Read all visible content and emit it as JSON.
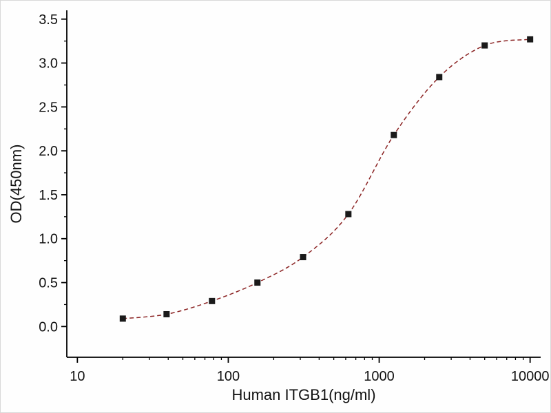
{
  "chart_data": {
    "type": "scatter",
    "title": "",
    "xlabel": "Human ITGB1(ng/ml)",
    "ylabel": "OD(450nm)",
    "grid": false,
    "legend": "none",
    "axes": {
      "x_scale": "log10",
      "x_log10_range": [
        0.93,
        4.07
      ],
      "y_range": [
        -0.35,
        3.6
      ],
      "x_ticks": [
        10,
        100,
        1000,
        10000
      ],
      "x_tick_labels": [
        "10",
        "100",
        "1000",
        "10000"
      ],
      "x_minor_ticks": [
        20,
        30,
        40,
        50,
        60,
        70,
        80,
        90,
        200,
        300,
        400,
        500,
        600,
        700,
        800,
        900,
        2000,
        3000,
        4000,
        5000,
        6000,
        7000,
        8000,
        9000
      ],
      "y_ticks": [
        0.0,
        0.5,
        1.0,
        1.5,
        2.0,
        2.5,
        3.0,
        3.5
      ],
      "y_tick_labels": [
        "0.0",
        "0.5",
        "1.0",
        "1.5",
        "2.0",
        "2.5",
        "3.0",
        "3.5"
      ],
      "y_minor_ticks": [
        0.25,
        0.75,
        1.25,
        1.75,
        2.25,
        2.75,
        3.25
      ]
    },
    "series": [
      {
        "name": "measured-points",
        "type": "scatter",
        "marker": "square",
        "color": "#1a1a1a",
        "x": [
          20,
          39,
          78,
          156,
          313,
          625,
          1250,
          2500,
          5000,
          10000
        ],
        "y": [
          0.09,
          0.14,
          0.29,
          0.5,
          0.79,
          1.28,
          2.18,
          2.84,
          3.2,
          3.27
        ]
      },
      {
        "name": "fit-curve",
        "type": "line",
        "style": "dashed",
        "dash": "6 4",
        "color": "#8b2323"
      }
    ]
  }
}
